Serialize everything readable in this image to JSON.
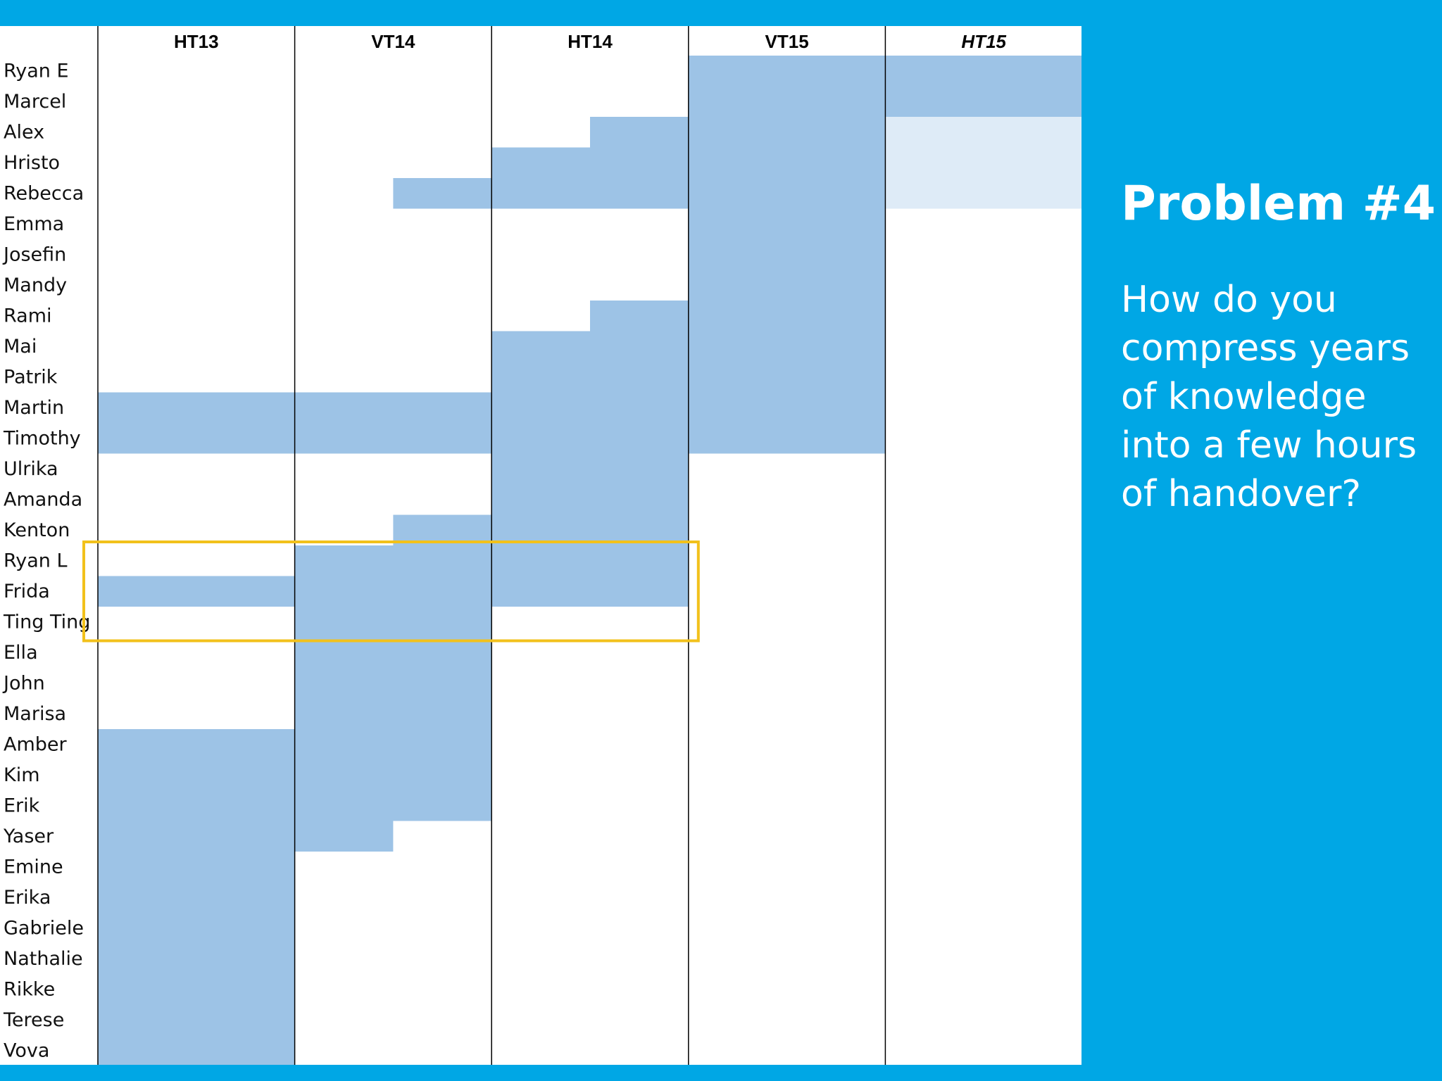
{
  "slide": {
    "title": "Problem #4",
    "question": "How do you compress years of knowledge into a few hours of handover?"
  },
  "colors": {
    "background": "#00a7e5",
    "bar": "#9dc3e6",
    "bar_faded": "#deebf7",
    "highlight": "#f2c11b",
    "grid": "#000000"
  },
  "chart_data": {
    "type": "gantt",
    "title": "",
    "columns": [
      {
        "label": "HT13",
        "italic": false
      },
      {
        "label": "VT14",
        "italic": false
      },
      {
        "label": "HT14",
        "italic": false
      },
      {
        "label": "VT15",
        "italic": false
      },
      {
        "label": "HT15",
        "italic": true
      }
    ],
    "rows": [
      "Ryan E",
      "Marcel",
      "Alex",
      "Hristo",
      "Rebecca",
      "Emma",
      "Josefin",
      "Mandy",
      "Rami",
      "Mai",
      "Patrik",
      "Martin",
      "Timothy",
      "Ulrika",
      "Amanda",
      "Kenton",
      "Ryan L",
      "Frida",
      "Ting Ting",
      "Ella",
      "John",
      "Marisa",
      "Amber",
      "Kim",
      "Erik",
      "Yaser",
      "Emine",
      "Erika",
      "Gabriele",
      "Nathalie",
      "Rikke",
      "Terese",
      "Vova"
    ],
    "x_unit": "semester",
    "spans": [
      {
        "start": 3.0,
        "end": 5.0,
        "row_start": 0,
        "row_end": 1
      },
      {
        "start": 3.0,
        "end": 4.0,
        "row_start": 2,
        "row_end": 12
      },
      {
        "start": 4.0,
        "end": 5.0,
        "row_start": 2,
        "row_end": 4,
        "style": "faded"
      },
      {
        "start": 2.5,
        "end": 4.0,
        "row_start": 2,
        "row_end": 2
      },
      {
        "start": 2.0,
        "end": 4.0,
        "row_start": 3,
        "row_end": 4
      },
      {
        "start": 1.5,
        "end": 2.0,
        "row_start": 4,
        "row_end": 4
      },
      {
        "start": 2.5,
        "end": 3.0,
        "row_start": 8,
        "row_end": 8
      },
      {
        "start": 2.0,
        "end": 3.0,
        "row_start": 9,
        "row_end": 17
      },
      {
        "start": 0.0,
        "end": 2.0,
        "row_start": 11,
        "row_end": 12
      },
      {
        "start": 1.5,
        "end": 2.0,
        "row_start": 15,
        "row_end": 15
      },
      {
        "start": 1.0,
        "end": 2.0,
        "row_start": 16,
        "row_end": 24
      },
      {
        "start": 0.0,
        "end": 1.0,
        "row_start": 17,
        "row_end": 17
      },
      {
        "start": 1.0,
        "end": 1.5,
        "row_start": 25,
        "row_end": 25
      },
      {
        "start": 0.0,
        "end": 1.0,
        "row_start": 22,
        "row_end": 32
      }
    ],
    "highlight": {
      "rows": [
        "Ryan L",
        "Frida",
        "Ting Ting"
      ],
      "columns": [
        "HT13",
        "VT14",
        "HT14"
      ]
    }
  }
}
